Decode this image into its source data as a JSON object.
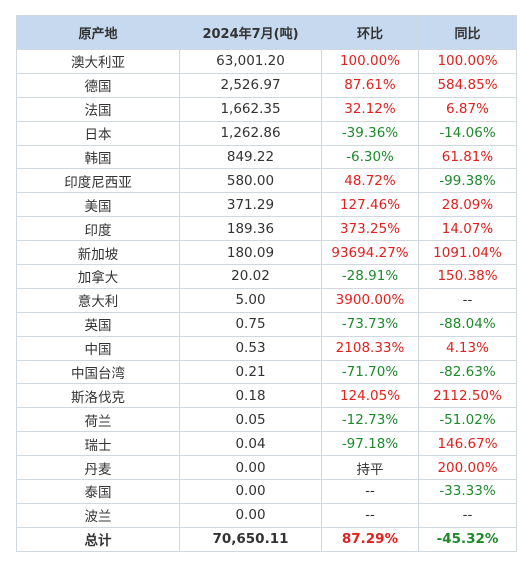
{
  "colors": {
    "header_bg": "#c6d9ef",
    "border": "#d0d7de",
    "positive": "#e0211d",
    "negative": "#1d8a2a",
    "text": "#333333"
  },
  "table": {
    "headers": [
      "原产地",
      "2024年7月(吨)",
      "环比",
      "同比"
    ],
    "rows": [
      {
        "origin": "澳大利亚",
        "volume": "63,001.20",
        "mom": "100.00%",
        "yoy": "100.00%"
      },
      {
        "origin": "德国",
        "volume": "2,526.97",
        "mom": "87.61%",
        "yoy": "584.85%"
      },
      {
        "origin": "法国",
        "volume": "1,662.35",
        "mom": "32.12%",
        "yoy": "6.87%"
      },
      {
        "origin": "日本",
        "volume": "1,262.86",
        "mom": "-39.36%",
        "yoy": "-14.06%"
      },
      {
        "origin": "韩国",
        "volume": "849.22",
        "mom": "-6.30%",
        "yoy": "61.81%"
      },
      {
        "origin": "印度尼西亚",
        "volume": "580.00",
        "mom": "48.72%",
        "yoy": "-99.38%"
      },
      {
        "origin": "美国",
        "volume": "371.29",
        "mom": "127.46%",
        "yoy": "28.09%"
      },
      {
        "origin": "印度",
        "volume": "189.36",
        "mom": "373.25%",
        "yoy": "14.07%"
      },
      {
        "origin": "新加坡",
        "volume": "180.09",
        "mom": "93694.27%",
        "yoy": "1091.04%"
      },
      {
        "origin": "加拿大",
        "volume": "20.02",
        "mom": "-28.91%",
        "yoy": "150.38%"
      },
      {
        "origin": "意大利",
        "volume": "5.00",
        "mom": "3900.00%",
        "yoy": "--"
      },
      {
        "origin": "英国",
        "volume": "0.75",
        "mom": "-73.73%",
        "yoy": "-88.04%"
      },
      {
        "origin": "中国",
        "volume": "0.53",
        "mom": "2108.33%",
        "yoy": "4.13%"
      },
      {
        "origin": "中国台湾",
        "volume": "0.21",
        "mom": "-71.70%",
        "yoy": "-82.63%"
      },
      {
        "origin": "斯洛伐克",
        "volume": "0.18",
        "mom": "124.05%",
        "yoy": "2112.50%"
      },
      {
        "origin": "荷兰",
        "volume": "0.05",
        "mom": "-12.73%",
        "yoy": "-51.02%"
      },
      {
        "origin": "瑞士",
        "volume": "0.04",
        "mom": "-97.18%",
        "yoy": "146.67%"
      },
      {
        "origin": "丹麦",
        "volume": "0.00",
        "mom": "持平",
        "yoy": "200.00%"
      },
      {
        "origin": "泰国",
        "volume": "0.00",
        "mom": "--",
        "yoy": "-33.33%"
      },
      {
        "origin": "波兰",
        "volume": "0.00",
        "mom": "--",
        "yoy": "--"
      }
    ],
    "total": {
      "origin": "总计",
      "volume": "70,650.11",
      "mom": "87.29%",
      "yoy": "-45.32%"
    }
  }
}
